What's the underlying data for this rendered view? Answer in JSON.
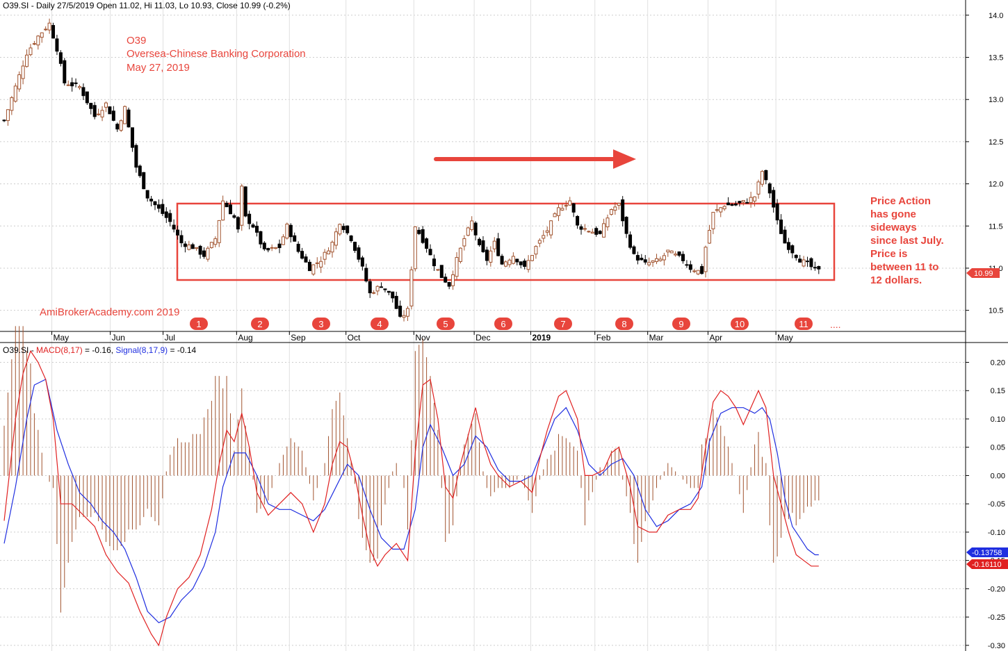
{
  "header": {
    "price_title": "O39.SI - Daily 27/5/2019 Open 11.02, Hi 11.03, Lo 10.93, Close 10.99 (-0.2%)",
    "macd_prefix": "O39.SI - ",
    "macd_label": "MACD(8,17)",
    "macd_value": " = -0.16, ",
    "signal_label": "Signal(8,17,9)",
    "signal_value": " = -0.14"
  },
  "annotations": {
    "ticker": "O39",
    "company": "Oversea-Chinese Banking Corporation",
    "date": "May 27, 2019",
    "watermark": "AmiBrokerAcademy.com  2019",
    "note_lines": [
      "Price Action",
      "has gone",
      "sideways",
      "since last July.",
      "Price is",
      "between 11 to",
      "12 dollars."
    ],
    "markers": [
      "1",
      "2",
      "3",
      "4",
      "5",
      "6",
      "7",
      "8",
      "9",
      "10",
      "11"
    ],
    "ellipsis": "....",
    "last_price_label": "10.99",
    "macd_tag": "-0.16110",
    "signal_tag": "-0.13758"
  },
  "colors": {
    "accent_red": "#e8453c",
    "macd_line": "#e02020",
    "signal_line": "#1f2ee0",
    "histogram": "#a0522d",
    "candle_up": "#a0522d",
    "candle_down": "#000000",
    "grid": "#cccccc"
  },
  "chart_data": [
    {
      "type": "candlestick",
      "title": "O39.SI - Daily 27/5/2019 Open 11.02, Hi 11.03, Lo 10.93, Close 10.99 (-0.2%)",
      "x_ticks": [
        "May",
        "Jun",
        "Jul",
        "Aug",
        "Sep",
        "Oct",
        "Nov",
        "Dec",
        "2019",
        "Feb",
        "Mar",
        "Apr",
        "May"
      ],
      "y_ticks": [
        10.5,
        11.0,
        11.5,
        12.0,
        12.5,
        13.0,
        13.5,
        14.0
      ],
      "ylim": [
        10.25,
        14.18
      ],
      "last": {
        "open": 11.02,
        "high": 11.03,
        "low": 10.93,
        "close": 10.99
      },
      "close_path": [
        [
          0,
          12.75
        ],
        [
          6,
          13.55
        ],
        [
          9,
          13.75
        ],
        [
          12,
          13.9
        ],
        [
          14,
          13.6
        ],
        [
          16,
          13.2
        ],
        [
          20,
          13.15
        ],
        [
          24,
          12.8
        ],
        [
          27,
          12.95
        ],
        [
          30,
          12.65
        ],
        [
          32,
          12.9
        ],
        [
          35,
          12.2
        ],
        [
          38,
          11.85
        ],
        [
          41,
          11.7
        ],
        [
          44,
          11.55
        ],
        [
          47,
          11.3
        ],
        [
          50,
          11.25
        ],
        [
          53,
          11.15
        ],
        [
          56,
          11.35
        ],
        [
          58,
          11.8
        ],
        [
          61,
          11.6
        ],
        [
          62,
          11.45
        ],
        [
          63,
          11.95
        ],
        [
          64,
          11.6
        ],
        [
          66,
          11.5
        ],
        [
          69,
          11.2
        ],
        [
          73,
          11.25
        ],
        [
          75,
          11.5
        ],
        [
          78,
          11.2
        ],
        [
          81,
          11.0
        ],
        [
          84,
          11.1
        ],
        [
          87,
          11.3
        ],
        [
          89,
          11.55
        ],
        [
          92,
          11.35
        ],
        [
          95,
          11.0
        ],
        [
          97,
          10.7
        ],
        [
          100,
          10.8
        ],
        [
          103,
          10.65
        ],
        [
          105,
          10.4
        ],
        [
          107,
          10.5
        ],
        [
          109,
          11.5
        ],
        [
          112,
          11.25
        ],
        [
          114,
          11.05
        ],
        [
          116,
          10.9
        ],
        [
          118,
          10.8
        ],
        [
          120,
          11.1
        ],
        [
          122,
          11.35
        ],
        [
          124,
          11.55
        ],
        [
          126,
          11.25
        ],
        [
          128,
          11.1
        ],
        [
          130,
          11.3
        ],
        [
          132,
          11.05
        ],
        [
          135,
          11.15
        ],
        [
          138,
          11.0
        ],
        [
          141,
          11.25
        ],
        [
          144,
          11.45
        ],
        [
          147,
          11.7
        ],
        [
          150,
          11.8
        ],
        [
          152,
          11.5
        ],
        [
          155,
          11.45
        ],
        [
          158,
          11.4
        ],
        [
          161,
          11.7
        ],
        [
          163,
          11.75
        ],
        [
          165,
          11.4
        ],
        [
          167,
          11.15
        ],
        [
          170,
          11.05
        ],
        [
          174,
          11.1
        ],
        [
          176,
          11.2
        ],
        [
          180,
          11.1
        ],
        [
          182,
          11.0
        ],
        [
          185,
          10.95
        ],
        [
          186,
          11.25
        ],
        [
          188,
          11.65
        ],
        [
          191,
          11.75
        ],
        [
          194,
          11.75
        ],
        [
          197,
          11.8
        ],
        [
          199,
          11.85
        ],
        [
          201,
          12.15
        ],
        [
          203,
          11.9
        ],
        [
          205,
          11.55
        ],
        [
          207,
          11.3
        ],
        [
          209,
          11.2
        ],
        [
          211,
          11.1
        ],
        [
          213,
          11.05
        ],
        [
          215,
          10.98
        ],
        [
          216,
          10.99
        ]
      ]
    },
    {
      "type": "line",
      "title": "MACD(8,17) = -0.16, Signal(8,17,9) = -0.14",
      "y_ticks": [
        -0.3,
        -0.25,
        -0.2,
        -0.15,
        -0.1,
        -0.05,
        0.0,
        0.05,
        0.1,
        0.15,
        0.2
      ],
      "ylim": [
        -0.31,
        0.235
      ],
      "series": [
        {
          "name": "MACD(8,17)",
          "last": -0.1611,
          "points": [
            [
              0,
              -0.08
            ],
            [
              3,
              0.1
            ],
            [
              5,
              0.18
            ],
            [
              7,
              0.22
            ],
            [
              9,
              0.2
            ],
            [
              11,
              0.17
            ],
            [
              13,
              0.1
            ],
            [
              15,
              -0.05
            ],
            [
              18,
              -0.05
            ],
            [
              21,
              -0.07
            ],
            [
              24,
              -0.09
            ],
            [
              27,
              -0.14
            ],
            [
              30,
              -0.17
            ],
            [
              33,
              -0.19
            ],
            [
              36,
              -0.24
            ],
            [
              39,
              -0.28
            ],
            [
              41,
              -0.3
            ],
            [
              43,
              -0.25
            ],
            [
              46,
              -0.2
            ],
            [
              49,
              -0.18
            ],
            [
              52,
              -0.14
            ],
            [
              55,
              -0.06
            ],
            [
              57,
              0.02
            ],
            [
              59,
              0.08
            ],
            [
              61,
              0.06
            ],
            [
              63,
              0.11
            ],
            [
              65,
              0.05
            ],
            [
              67,
              -0.03
            ],
            [
              70,
              -0.07
            ],
            [
              73,
              -0.05
            ],
            [
              76,
              -0.03
            ],
            [
              79,
              -0.05
            ],
            [
              82,
              -0.1
            ],
            [
              85,
              -0.05
            ],
            [
              87,
              0.02
            ],
            [
              89,
              0.06
            ],
            [
              91,
              0.05
            ],
            [
              93,
              0.0
            ],
            [
              95,
              -0.07
            ],
            [
              97,
              -0.13
            ],
            [
              99,
              -0.16
            ],
            [
              101,
              -0.14
            ],
            [
              104,
              -0.12
            ],
            [
              107,
              -0.15
            ],
            [
              109,
              0.04
            ],
            [
              111,
              0.16
            ],
            [
              113,
              0.17
            ],
            [
              115,
              0.1
            ],
            [
              117,
              -0.02
            ],
            [
              119,
              -0.04
            ],
            [
              121,
              0.02
            ],
            [
              123,
              0.07
            ],
            [
              125,
              0.12
            ],
            [
              127,
              0.06
            ],
            [
              129,
              0.02
            ],
            [
              131,
              0.0
            ],
            [
              134,
              -0.02
            ],
            [
              137,
              -0.01
            ],
            [
              140,
              -0.03
            ],
            [
              142,
              0.03
            ],
            [
              144,
              0.08
            ],
            [
              147,
              0.14
            ],
            [
              149,
              0.15
            ],
            [
              152,
              0.1
            ],
            [
              154,
              0.0
            ],
            [
              156,
              0.0
            ],
            [
              159,
              0.01
            ],
            [
              161,
              0.04
            ],
            [
              163,
              0.05
            ],
            [
              166,
              -0.02
            ],
            [
              168,
              -0.09
            ],
            [
              171,
              -0.1
            ],
            [
              173,
              -0.1
            ],
            [
              176,
              -0.07
            ],
            [
              179,
              -0.06
            ],
            [
              182,
              -0.06
            ],
            [
              184,
              -0.04
            ],
            [
              186,
              0.05
            ],
            [
              188,
              0.13
            ],
            [
              190,
              0.15
            ],
            [
              192,
              0.14
            ],
            [
              194,
              0.12
            ],
            [
              196,
              0.09
            ],
            [
              198,
              0.12
            ],
            [
              200,
              0.15
            ],
            [
              202,
              0.12
            ],
            [
              204,
              0.0
            ],
            [
              206,
              -0.05
            ],
            [
              208,
              -0.1
            ],
            [
              210,
              -0.14
            ],
            [
              212,
              -0.15
            ],
            [
              214,
              -0.16
            ],
            [
              216,
              -0.16
            ]
          ]
        },
        {
          "name": "Signal(8,17,9)",
          "last": -0.13758,
          "points": [
            [
              0,
              -0.12
            ],
            [
              3,
              -0.02
            ],
            [
              6,
              0.1
            ],
            [
              8,
              0.16
            ],
            [
              11,
              0.17
            ],
            [
              14,
              0.08
            ],
            [
              17,
              0.02
            ],
            [
              20,
              -0.03
            ],
            [
              23,
              -0.05
            ],
            [
              26,
              -0.08
            ],
            [
              29,
              -0.1
            ],
            [
              32,
              -0.13
            ],
            [
              35,
              -0.18
            ],
            [
              38,
              -0.24
            ],
            [
              41,
              -0.26
            ],
            [
              44,
              -0.25
            ],
            [
              47,
              -0.22
            ],
            [
              50,
              -0.2
            ],
            [
              53,
              -0.16
            ],
            [
              56,
              -0.1
            ],
            [
              58,
              -0.02
            ],
            [
              61,
              0.04
            ],
            [
              64,
              0.04
            ],
            [
              67,
              0.0
            ],
            [
              70,
              -0.05
            ],
            [
              73,
              -0.06
            ],
            [
              76,
              -0.06
            ],
            [
              79,
              -0.07
            ],
            [
              82,
              -0.08
            ],
            [
              85,
              -0.06
            ],
            [
              88,
              -0.02
            ],
            [
              91,
              0.02
            ],
            [
              94,
              0.0
            ],
            [
              97,
              -0.06
            ],
            [
              100,
              -0.11
            ],
            [
              103,
              -0.13
            ],
            [
              106,
              -0.13
            ],
            [
              109,
              -0.06
            ],
            [
              111,
              0.05
            ],
            [
              113,
              0.09
            ],
            [
              116,
              0.05
            ],
            [
              119,
              0.0
            ],
            [
              122,
              0.02
            ],
            [
              125,
              0.07
            ],
            [
              128,
              0.05
            ],
            [
              131,
              0.01
            ],
            [
              134,
              -0.01
            ],
            [
              137,
              -0.01
            ],
            [
              140,
              0.0
            ],
            [
              143,
              0.05
            ],
            [
              146,
              0.1
            ],
            [
              149,
              0.12
            ],
            [
              152,
              0.08
            ],
            [
              155,
              0.02
            ],
            [
              158,
              0.0
            ],
            [
              161,
              0.02
            ],
            [
              164,
              0.03
            ],
            [
              167,
              0.0
            ],
            [
              170,
              -0.06
            ],
            [
              173,
              -0.09
            ],
            [
              176,
              -0.08
            ],
            [
              179,
              -0.06
            ],
            [
              182,
              -0.05
            ],
            [
              185,
              -0.02
            ],
            [
              187,
              0.06
            ],
            [
              190,
              0.11
            ],
            [
              193,
              0.12
            ],
            [
              196,
              0.12
            ],
            [
              199,
              0.11
            ],
            [
              201,
              0.12
            ],
            [
              203,
              0.1
            ],
            [
              205,
              0.04
            ],
            [
              207,
              -0.04
            ],
            [
              209,
              -0.09
            ],
            [
              211,
              -0.11
            ],
            [
              213,
              -0.13
            ],
            [
              215,
              -0.14
            ],
            [
              216,
              -0.14
            ]
          ]
        }
      ]
    }
  ]
}
